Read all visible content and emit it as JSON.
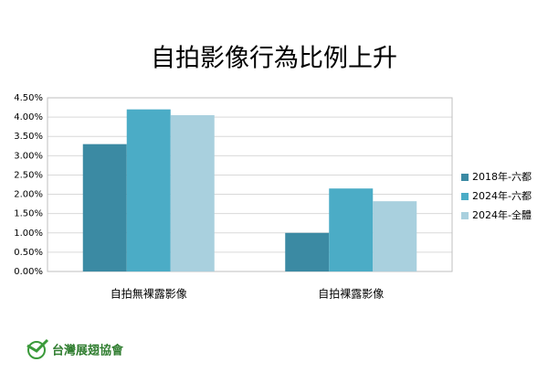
{
  "chart_data": {
    "type": "bar",
    "title": "自拍影像行為比例上升",
    "categories": [
      "自拍無裸露影像",
      "自拍裸露影像"
    ],
    "series": [
      {
        "name": "2018年-六都",
        "color": "#3b8aa3",
        "values": [
          3.3,
          1.0
        ]
      },
      {
        "name": "2024年-六都",
        "color": "#4bacc6",
        "values": [
          4.2,
          2.15
        ]
      },
      {
        "name": "2024年-全體",
        "color": "#a9d0de",
        "values": [
          4.05,
          1.82
        ]
      }
    ],
    "ylim": [
      0,
      4.5
    ],
    "yticks": [
      {
        "value": 0,
        "label": "0.00%"
      },
      {
        "value": 0.5,
        "label": "0.50%"
      },
      {
        "value": 1,
        "label": "1.00%"
      },
      {
        "value": 1.5,
        "label": "1.50%"
      },
      {
        "value": 2,
        "label": "2.00%"
      },
      {
        "value": 2.5,
        "label": "2.50%"
      },
      {
        "value": 3,
        "label": "3.00%"
      },
      {
        "value": 3.5,
        "label": "3.50%"
      },
      {
        "value": 4,
        "label": "4.00%"
      },
      {
        "value": 4.5,
        "label": "4.50%"
      }
    ],
    "grid": true,
    "legend": "right"
  },
  "footer": {
    "logo_text": "台灣展翅協會"
  }
}
